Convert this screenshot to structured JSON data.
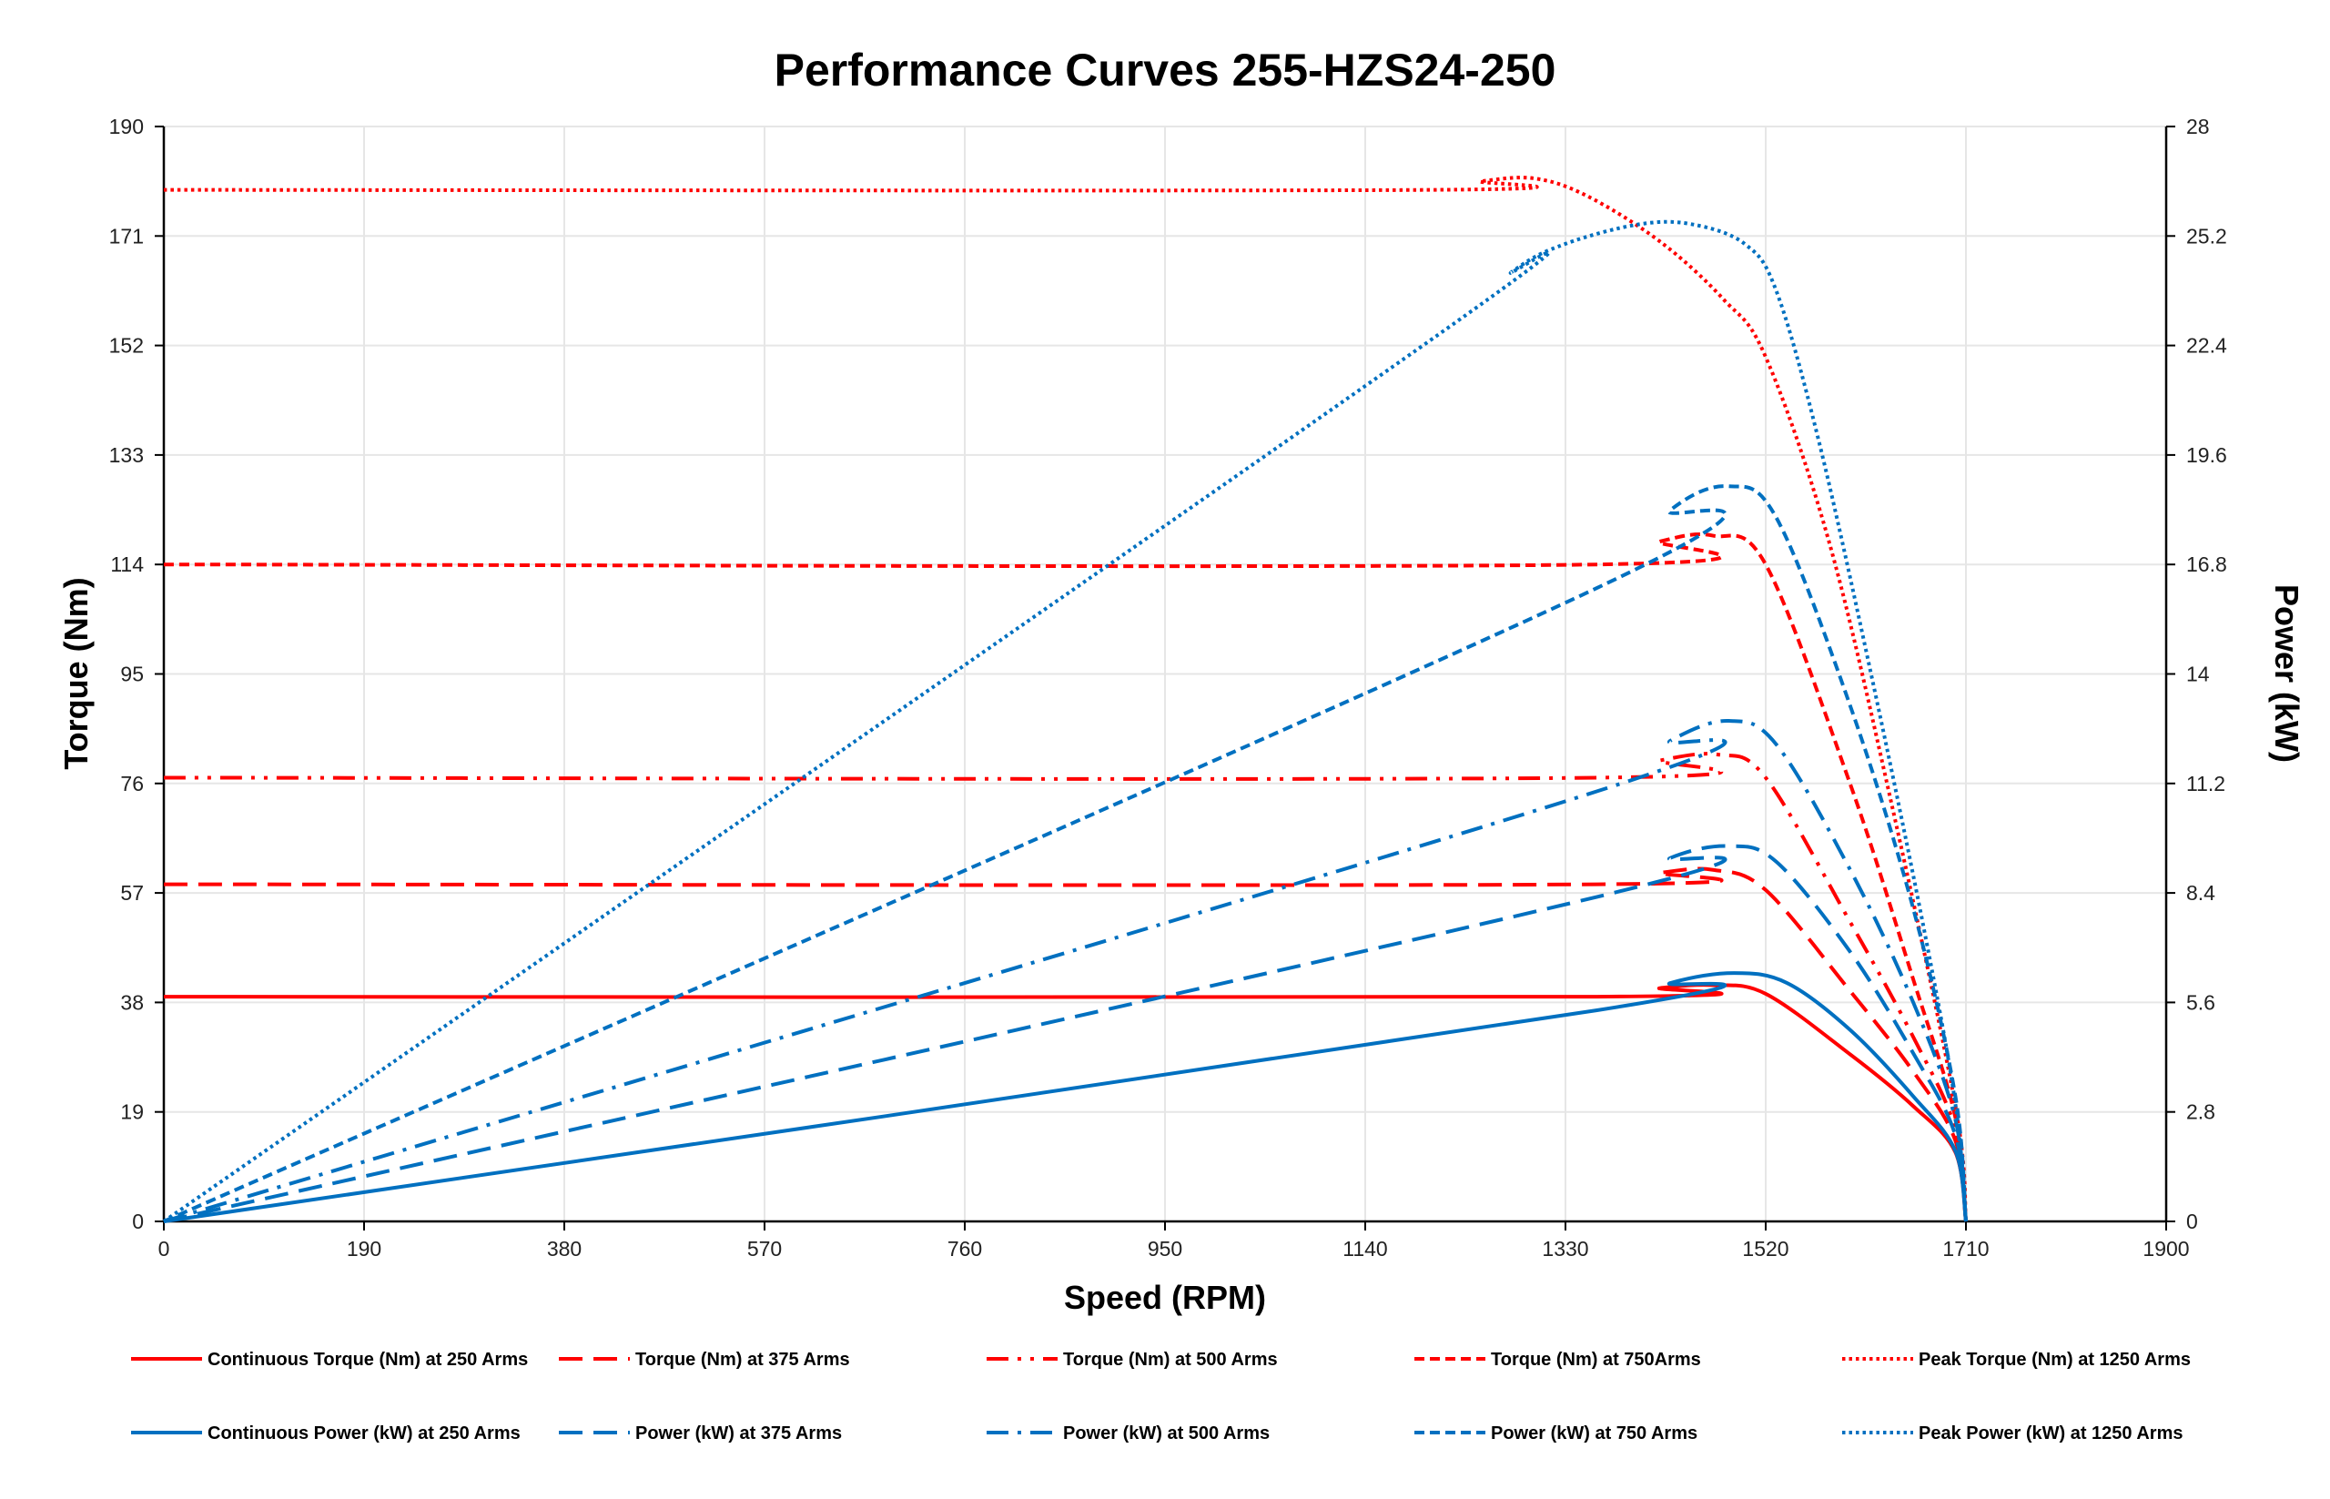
{
  "chart_data": {
    "type": "line",
    "title": "Performance Curves 255-HZS24-250",
    "xlabel": "Speed (RPM)",
    "ylabel": "Torque (Nm)",
    "y2label": "Power (kW)",
    "xlim": [
      0,
      1900
    ],
    "ylim": [
      0,
      190
    ],
    "y2lim": [
      0,
      28
    ],
    "xticks": [
      "0",
      "190",
      "380",
      "570",
      "760",
      "950",
      "1140",
      "1330",
      "1520",
      "1710",
      "1900"
    ],
    "yticks": [
      "0",
      "19",
      "38",
      "57",
      "76",
      "95",
      "114",
      "133",
      "152",
      "171",
      "190"
    ],
    "y2ticks": [
      "0",
      "2.8",
      "5.6",
      "8.4",
      "11.2",
      "14",
      "16.8",
      "19.6",
      "22.4",
      "25.2",
      "28"
    ],
    "grid": true,
    "legend_position": "bottom",
    "colors": {
      "torque": "#ff0000",
      "power": "#0070c0"
    },
    "series": [
      {
        "name": "Continuous Torque (Nm) at 250 Arms",
        "axis": "left",
        "color": "#ff0000",
        "style": "solid",
        "x": [
          0,
          1360,
          1420,
          1470,
          1520,
          1600,
          1660,
          1700,
          1710
        ],
        "y": [
          39,
          39,
          40.5,
          41,
          39.5,
          29,
          20,
          12,
          0
        ]
      },
      {
        "name": "Torque (Nm) at 375 Arms",
        "axis": "left",
        "color": "#ff0000",
        "style": "long-dash",
        "x": [
          0,
          1360,
          1420,
          1470,
          1520,
          1600,
          1660,
          1700,
          1710
        ],
        "y": [
          58.5,
          58.5,
          60.5,
          61,
          57.5,
          40,
          26,
          14,
          0
        ]
      },
      {
        "name": "Torque (Nm) at 500 Arms",
        "axis": "left",
        "color": "#ff0000",
        "style": "dash-dot-dot",
        "x": [
          0,
          1360,
          1420,
          1475,
          1520,
          1600,
          1660,
          1700,
          1710
        ],
        "y": [
          77,
          77,
          80,
          81,
          77,
          52,
          32,
          16,
          0
        ]
      },
      {
        "name": "Torque (Nm) at 750Arms",
        "axis": "left",
        "color": "#ff0000",
        "style": "dash",
        "x": [
          0,
          1360,
          1420,
          1470,
          1520,
          1600,
          1660,
          1700,
          1710
        ],
        "y": [
          114,
          114,
          118,
          119,
          114,
          76,
          42,
          18,
          0
        ]
      },
      {
        "name": "Peak Torque (Nm) at 1250  Arms",
        "axis": "left",
        "color": "#ff0000",
        "style": "dot",
        "x": [
          0,
          1200,
          1250,
          1300,
          1350,
          1420,
          1480,
          1520,
          1580,
          1640,
          1700,
          1710
        ],
        "y": [
          179,
          179,
          180.5,
          181,
          178,
          170,
          160,
          150,
          118,
          72,
          20,
          0
        ]
      },
      {
        "name": "Continuous Power (kW) at 250 Arms",
        "axis": "right",
        "color": "#0070c0",
        "style": "solid",
        "x": [
          0,
          1360,
          1430,
          1490,
          1540,
          1600,
          1660,
          1700,
          1710
        ],
        "y": [
          0,
          5.4,
          6.1,
          6.35,
          6.1,
          4.9,
          3.2,
          1.8,
          0
        ]
      },
      {
        "name": "Power (kW) at 375 Arms",
        "axis": "right",
        "color": "#0070c0",
        "style": "long-dash",
        "x": [
          0,
          1360,
          1430,
          1485,
          1530,
          1600,
          1660,
          1700,
          1710
        ],
        "y": [
          0,
          8.3,
          9.3,
          9.6,
          9.2,
          6.9,
          4.3,
          2.2,
          0
        ]
      },
      {
        "name": "Power (kW) at 500 Arms",
        "axis": "right",
        "color": "#0070c0",
        "style": "dash-dot",
        "x": [
          0,
          1360,
          1430,
          1485,
          1530,
          1600,
          1660,
          1700,
          1710
        ],
        "y": [
          0,
          11.0,
          12.3,
          12.8,
          12.2,
          9.0,
          5.6,
          2.6,
          0
        ]
      },
      {
        "name": "Power (kW) at 750 Arms",
        "axis": "right",
        "color": "#0070c0",
        "style": "dash",
        "x": [
          0,
          1360,
          1430,
          1485,
          1530,
          1600,
          1660,
          1700,
          1710
        ],
        "y": [
          0,
          16.2,
          18.2,
          18.8,
          18.0,
          13.2,
          8.0,
          3.2,
          0
        ]
      },
      {
        "name": "Peak Power (kW) at 1250 Arms",
        "axis": "right",
        "color": "#0070c0",
        "style": "dot",
        "x": [
          0,
          1200,
          1280,
          1330,
          1400,
          1450,
          1500,
          1530,
          1570,
          1620,
          1670,
          1700,
          1710
        ],
        "y": [
          0,
          22.5,
          24.3,
          25.0,
          25.5,
          25.5,
          25.0,
          23.8,
          20.0,
          14.0,
          7.5,
          3.0,
          0
        ]
      }
    ]
  }
}
